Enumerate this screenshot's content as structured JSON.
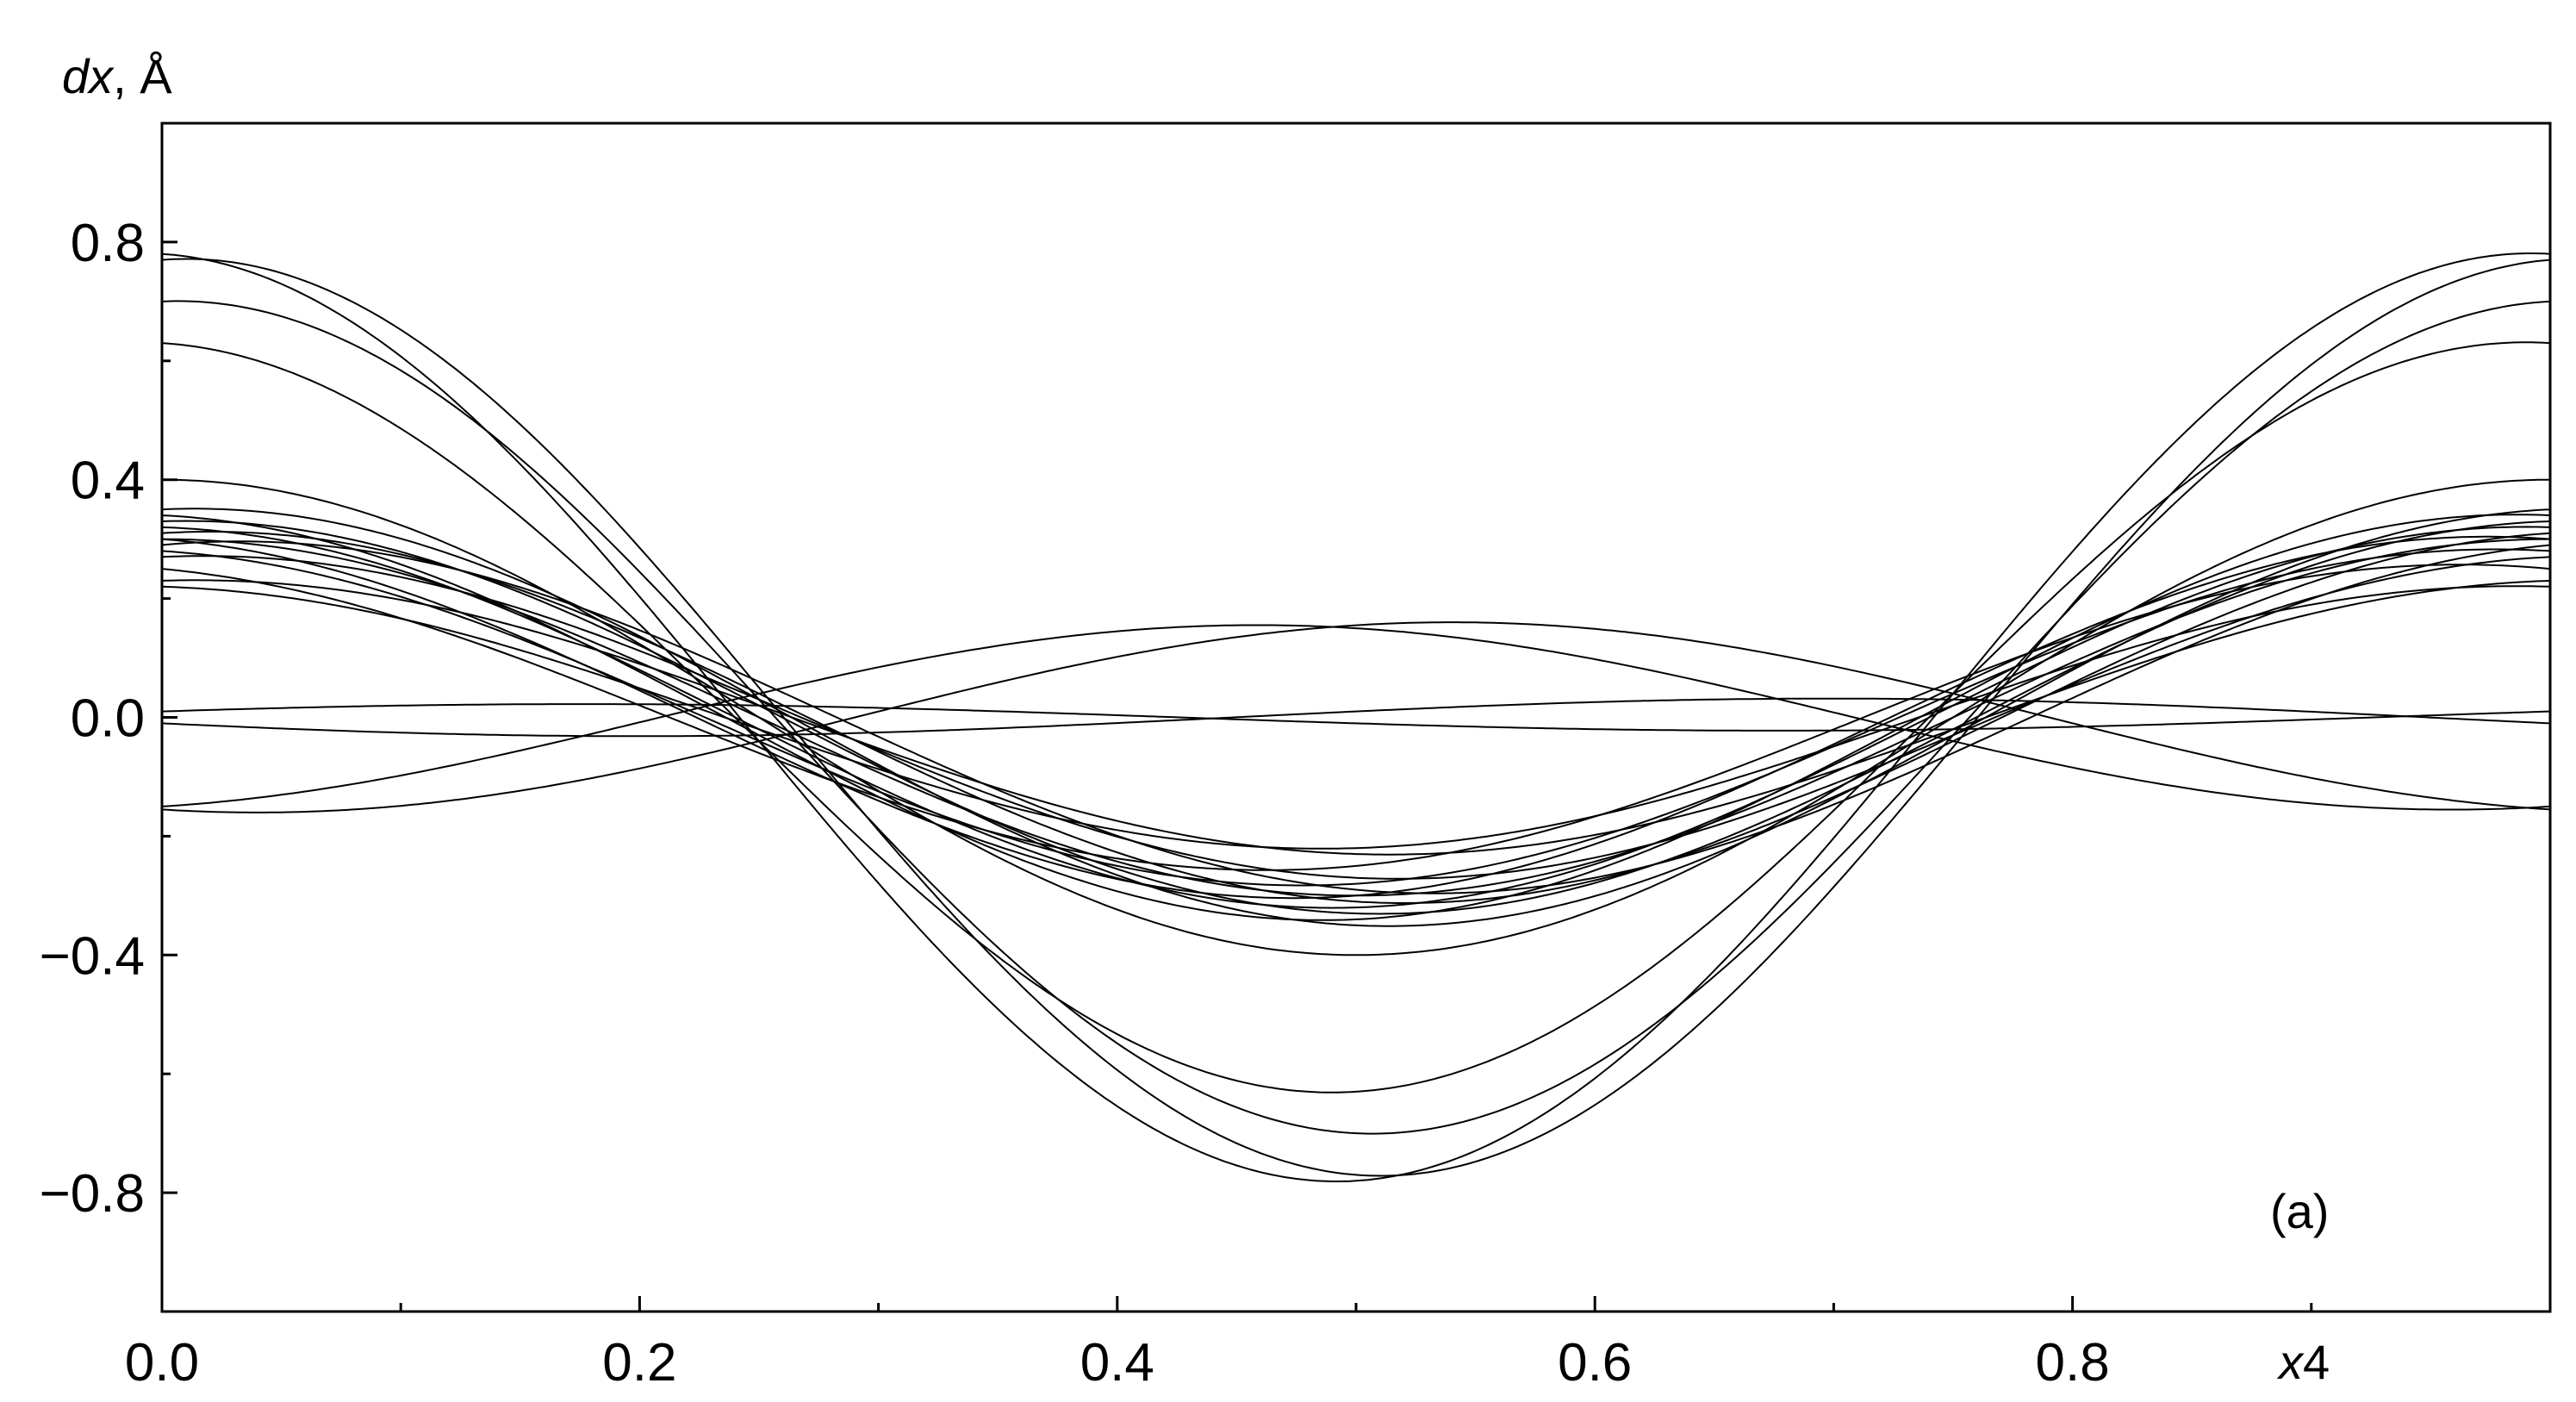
{
  "chart_data": {
    "type": "line",
    "title": "",
    "xlabel_var": "x",
    "xlabel_num": "4",
    "ylabel_var": "dx",
    "ylabel_unit": ", Å",
    "xlim": [
      0,
      1
    ],
    "ylim": [
      -1,
      1
    ],
    "x_ticks": [
      "0.0",
      "0.2",
      "0.4",
      "0.6",
      "0.8"
    ],
    "x_tick_values": [
      0,
      0.2,
      0.4,
      0.6,
      0.8
    ],
    "y_ticks": [
      "0.8",
      "0.4",
      "0.0",
      "−0.4",
      "−0.8"
    ],
    "y_tick_values": [
      0.8,
      0.4,
      0,
      -0.4,
      -0.8
    ],
    "annotation": "(a)",
    "grid": false,
    "line_color": "#000000",
    "series_model": "dx(x4) = a*cos(2*pi*x4) + b*sin(2*pi*x4)",
    "series": [
      {
        "a": 0.78,
        "b": -0.04
      },
      {
        "a": 0.77,
        "b": 0.05
      },
      {
        "a": 0.7,
        "b": 0.03
      },
      {
        "a": 0.63,
        "b": -0.04
      },
      {
        "a": 0.4,
        "b": 0.0
      },
      {
        "a": 0.35,
        "b": 0.03
      },
      {
        "a": 0.34,
        "b": -0.03
      },
      {
        "a": 0.33,
        "b": 0.02
      },
      {
        "a": 0.32,
        "b": -0.02
      },
      {
        "a": 0.31,
        "b": 0.04
      },
      {
        "a": 0.3,
        "b": -0.05
      },
      {
        "a": 0.3,
        "b": 0.0
      },
      {
        "a": 0.29,
        "b": 0.06
      },
      {
        "a": 0.28,
        "b": -0.04
      },
      {
        "a": 0.27,
        "b": 0.03
      },
      {
        "a": 0.25,
        "b": -0.06
      },
      {
        "a": 0.23,
        "b": 0.02
      },
      {
        "a": 0.22,
        "b": -0.02
      },
      {
        "a": -0.15,
        "b": 0.04
      },
      {
        "a": -0.155,
        "b": -0.04
      },
      {
        "a": 0.01,
        "b": 0.02
      },
      {
        "a": -0.01,
        "b": -0.03
      }
    ]
  }
}
